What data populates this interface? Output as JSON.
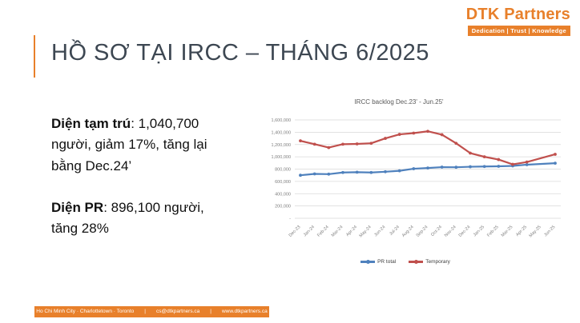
{
  "logo": {
    "d_letter": "D",
    "rest": "TK Partners",
    "tagline": "Dedication | Trust | Knowledge"
  },
  "slide": {
    "title": "HỒ SƠ TẠI IRCC – THÁNG 6/2025"
  },
  "body": {
    "p1_bold": "Diện tạm trú",
    "p1_rest": ": 1,040,700 người, giảm 17%, tăng lại bằng Dec.24’",
    "p2_bold": "Diện PR",
    "p2_rest": ": 896,100 người, tăng 28%"
  },
  "chart_data": {
    "type": "line",
    "title": "IRCC backlog Dec.23' - Jun.25'",
    "categories": [
      "Dec-23",
      "Jan-24",
      "Feb-24",
      "Mar-24",
      "Apr-24",
      "May-24",
      "Jun-24",
      "Jul-24",
      "Aug-24",
      "Sep-24",
      "Oct-24",
      "Nov-24",
      "Dec-24",
      "Jan-25",
      "Feb-25",
      "Mar-25",
      "Apr-25",
      "May-25",
      "Jun-25"
    ],
    "series": [
      {
        "name": "PR total",
        "color": "#4F81BD",
        "values": [
          700000,
          722000,
          718000,
          745000,
          750000,
          745000,
          757000,
          772000,
          806000,
          818000,
          832000,
          830000,
          838000,
          842000,
          846000,
          852000,
          872000,
          null,
          896100
        ]
      },
      {
        "name": "Temporary",
        "color": "#C0504D",
        "values": [
          1260000,
          1205000,
          1150000,
          1205000,
          1210000,
          1220000,
          1300000,
          1365000,
          1385000,
          1415000,
          1360000,
          1220000,
          1060000,
          1000000,
          955000,
          877000,
          915000,
          null,
          1040700
        ]
      }
    ],
    "ylim": [
      0,
      1600000
    ],
    "ytick_step": 200000,
    "ytick_labels": [
      "-",
      "200,000",
      "400,000",
      "600,000",
      "800,000",
      "1,000,000",
      "1,200,000",
      "1,400,000",
      "1,600,000"
    ],
    "grid": true,
    "legend_position": "bottom"
  },
  "footer": {
    "locations": "Ho Chi Minh City · Charlottetown · Toronto",
    "separator": "|",
    "email": "cs@dtkpartners.ca",
    "website": "www.dtkpartners.ca"
  }
}
